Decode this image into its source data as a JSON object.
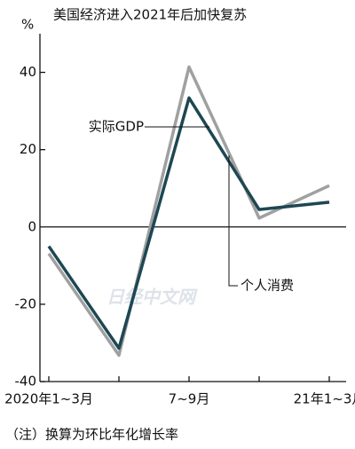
{
  "chart_data": {
    "type": "line",
    "title": "美国经济进入2021年后加快复苏",
    "y_unit": "%",
    "categories": [
      "2020年1~3月",
      null,
      "7~9月",
      null,
      "21年1~3月"
    ],
    "series": [
      {
        "name": "实际GDP",
        "color": "#1d4753",
        "values": [
          -5,
          -31.4,
          33.4,
          4.5,
          6.4
        ]
      },
      {
        "name": "个人消费",
        "color": "#a0a0a0",
        "values": [
          -6.9,
          -33.2,
          41.4,
          2.3,
          10.7
        ]
      }
    ],
    "ylim": [
      -40,
      50
    ],
    "yticks": [
      40,
      20,
      0,
      -20,
      -40
    ],
    "note": "（注）换算为环比年化增长率",
    "watermark": "日经中文网"
  }
}
